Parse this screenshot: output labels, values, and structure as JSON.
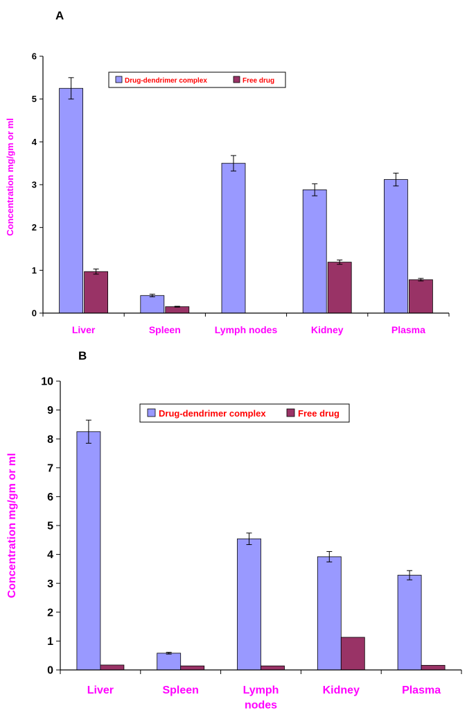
{
  "colors": {
    "series_a": "#9999FF",
    "series_b": "#993366",
    "label": "#FF00FF",
    "legend_text": "#FF0000",
    "axis": "#000000"
  },
  "chart_data": [
    {
      "type": "bar",
      "panel_label": "A",
      "title": "",
      "xlabel": "",
      "ylabel": "Concentration mg/gm or ml",
      "ylim": [
        0,
        6
      ],
      "yticks": [
        "0",
        "1",
        "2",
        "3",
        "4",
        "5",
        "6"
      ],
      "categories": [
        "Liver",
        "Spleen",
        "Lymph nodes",
        "Kidney",
        "Plasma"
      ],
      "legend_position": "top-center",
      "series": [
        {
          "name": "Drug-dendrimer complex",
          "values": [
            5.25,
            0.41,
            3.5,
            2.88,
            3.12
          ],
          "errors": [
            0.25,
            0.03,
            0.18,
            0.14,
            0.15
          ]
        },
        {
          "name": "Free drug",
          "values": [
            0.97,
            0.15,
            0.0,
            1.19,
            0.78
          ],
          "errors": [
            0.06,
            0.01,
            0.0,
            0.05,
            0.03
          ]
        }
      ]
    },
    {
      "type": "bar",
      "panel_label": "B",
      "title": "",
      "xlabel": "",
      "ylabel": "Concentration mg/gm or ml",
      "ylim": [
        0,
        10
      ],
      "yticks": [
        "0",
        "1",
        "2",
        "3",
        "4",
        "5",
        "6",
        "7",
        "8",
        "9",
        "10"
      ],
      "categories": [
        "Liver",
        "Spleen",
        "Lymph nodes",
        "Kidney",
        "Plasma"
      ],
      "legend_position": "top-center",
      "series": [
        {
          "name": "Drug-dendrimer complex",
          "values": [
            8.25,
            0.58,
            4.54,
            3.92,
            3.28
          ],
          "errors": [
            0.4,
            0.03,
            0.2,
            0.18,
            0.16
          ]
        },
        {
          "name": "Free drug",
          "values": [
            0.17,
            0.14,
            0.14,
            1.13,
            0.16
          ],
          "errors": [
            0.0,
            0.0,
            0.0,
            0.0,
            0.0
          ]
        }
      ]
    }
  ]
}
